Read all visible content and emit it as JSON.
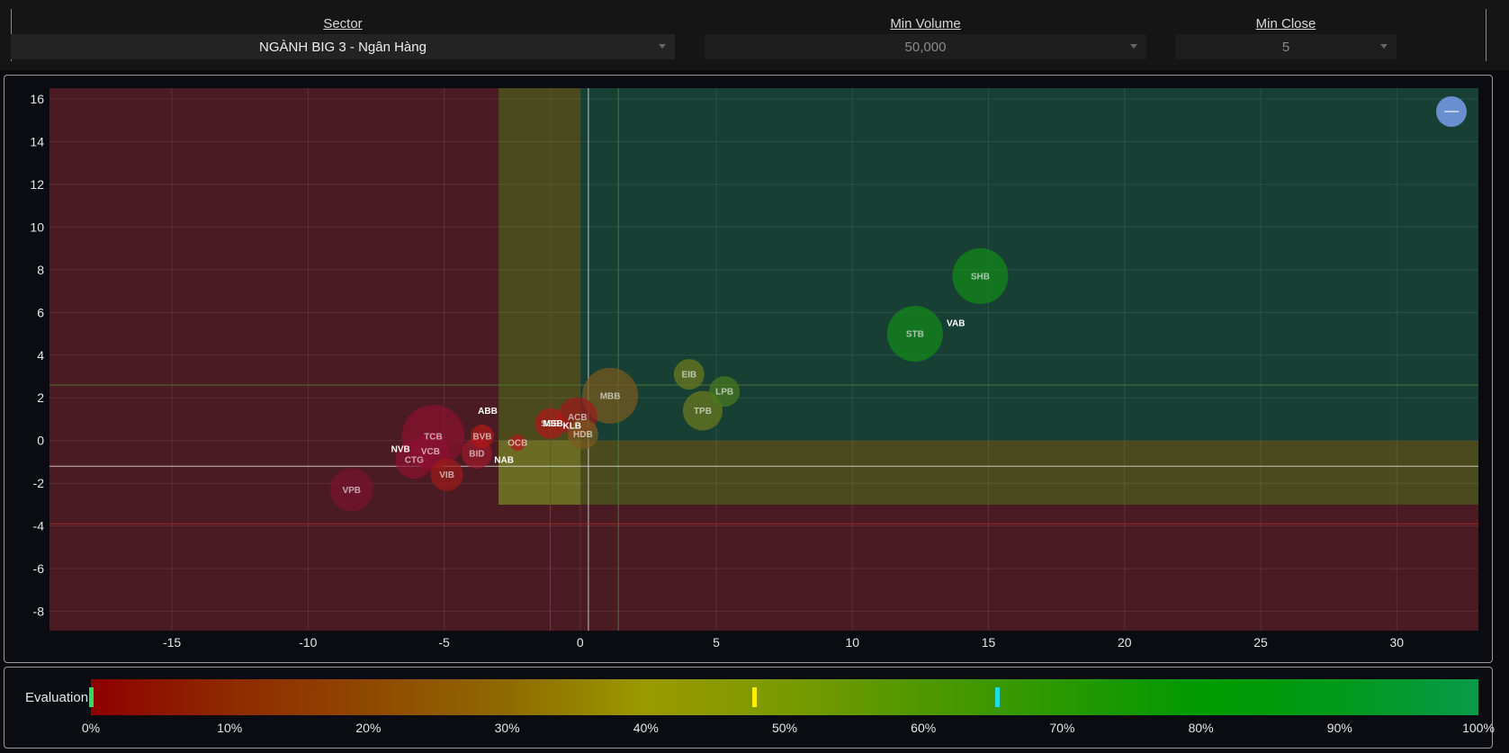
{
  "filters": {
    "sector": {
      "label": "Sector",
      "value": "NGÀNH BIG 3 - Ngân Hàng"
    },
    "min_volume": {
      "label": "Min Volume",
      "value": "50,000"
    },
    "min_close": {
      "label": "Min Close",
      "value": "5"
    }
  },
  "zoom_button": {
    "label": "—"
  },
  "chart_data": {
    "type": "scatter",
    "x_ticks": [
      "-15",
      "-10",
      "-5",
      "0",
      "5",
      "10",
      "15",
      "20",
      "25",
      "30"
    ],
    "y_ticks": [
      "16",
      "14",
      "12",
      "10",
      "8",
      "6",
      "4",
      "2",
      "0",
      "-2",
      "-4",
      "-6",
      "-8"
    ],
    "xlim": [
      -19.5,
      33
    ],
    "ylim": [
      -8.9,
      16.5
    ],
    "zones": [
      {
        "name": "red-left",
        "x": [
          -19.5,
          -3
        ],
        "y": [
          -8.9,
          16.5
        ],
        "color": "#4a1b22"
      },
      {
        "name": "red-bottom",
        "x": [
          -3,
          33
        ],
        "y": [
          -8.9,
          -3
        ],
        "color": "#4a1b22"
      },
      {
        "name": "yellow-vertical",
        "x": [
          -3,
          0
        ],
        "y": [
          -3,
          16.5
        ],
        "color": "#4a4a1c"
      },
      {
        "name": "yellow-horizontal",
        "x": [
          0,
          33
        ],
        "y": [
          -3,
          0
        ],
        "color": "#4a4a1c"
      },
      {
        "name": "yellow-corner",
        "x": [
          -3,
          0
        ],
        "y": [
          -3,
          0
        ],
        "color": "#6b6b24"
      },
      {
        "name": "green",
        "x": [
          0,
          33
        ],
        "y": [
          0,
          16.5
        ],
        "color": "#173f33"
      }
    ],
    "ref_lines": [
      {
        "axis": "x",
        "value": -1.1,
        "color": "#b22a2a"
      },
      {
        "axis": "x",
        "value": 0.3,
        "color": "#dddddd"
      },
      {
        "axis": "x",
        "value": 1.4,
        "color": "#3c8a3c"
      },
      {
        "axis": "y",
        "value": 2.6,
        "color": "#5a7a3a"
      },
      {
        "axis": "y",
        "value": -1.2,
        "color": "#dddddd"
      },
      {
        "axis": "y",
        "value": -3.9,
        "color": "#b22a2a"
      }
    ],
    "points": [
      {
        "label": "SHB",
        "x": 14.7,
        "y": 7.7,
        "size": 31,
        "color": "#138a1a"
      },
      {
        "label": "STB",
        "x": 12.3,
        "y": 5.0,
        "size": 31,
        "color": "#138a1a"
      },
      {
        "label": "VAB",
        "x": 13.8,
        "y": 5.5,
        "size": 0,
        "color": "#138a1a"
      },
      {
        "label": "EIB",
        "x": 4.0,
        "y": 3.1,
        "size": 17,
        "color": "#6b7a1e"
      },
      {
        "label": "LPB",
        "x": 5.3,
        "y": 2.3,
        "size": 17,
        "color": "#4a7a1e"
      },
      {
        "label": "TPB",
        "x": 4.5,
        "y": 1.4,
        "size": 22,
        "color": "#6b7a1e"
      },
      {
        "label": "MBB",
        "x": 1.1,
        "y": 2.1,
        "size": 31,
        "color": "#7a5a1e"
      },
      {
        "label": "ACB",
        "x": -0.1,
        "y": 1.1,
        "size": 22,
        "color": "#9b1a1a"
      },
      {
        "label": "HDB",
        "x": 0.1,
        "y": 0.3,
        "size": 17,
        "color": "#7a5a1e"
      },
      {
        "label": "SSB",
        "x": -1.1,
        "y": 0.8,
        "size": 17,
        "color": "#b01818"
      },
      {
        "label": "MSB",
        "x": -1.0,
        "y": 0.8,
        "size": 0,
        "color": "#b01818"
      },
      {
        "label": "KLB",
        "x": -0.3,
        "y": 0.7,
        "size": 0,
        "color": "#b01818"
      },
      {
        "label": "OCB",
        "x": -2.3,
        "y": -0.1,
        "size": 9,
        "color": "#b01818"
      },
      {
        "label": "ABB",
        "x": -3.4,
        "y": 1.4,
        "size": 0,
        "color": "#b01818"
      },
      {
        "label": "BVB",
        "x": -3.6,
        "y": 0.2,
        "size": 13,
        "color": "#b01818"
      },
      {
        "label": "BID",
        "x": -3.8,
        "y": -0.6,
        "size": 17,
        "color": "#9b1a2a"
      },
      {
        "label": "NAB",
        "x": -2.8,
        "y": -0.9,
        "size": 0,
        "color": "#b01818"
      },
      {
        "label": "TCB",
        "x": -5.4,
        "y": 0.2,
        "size": 35,
        "color": "#8a1030"
      },
      {
        "label": "VCB",
        "x": -5.5,
        "y": -0.5,
        "size": 21,
        "color": "#8a1030"
      },
      {
        "label": "CTG",
        "x": -6.1,
        "y": -0.9,
        "size": 21,
        "color": "#8a1030"
      },
      {
        "label": "NVB",
        "x": -6.6,
        "y": -0.4,
        "size": 0,
        "color": "#8a1030"
      },
      {
        "label": "VIB",
        "x": -4.9,
        "y": -1.6,
        "size": 18,
        "color": "#9b1a1a"
      },
      {
        "label": "VPB",
        "x": -8.4,
        "y": -2.3,
        "size": 24,
        "color": "#7a1230"
      }
    ]
  },
  "evaluation": {
    "label": "Evaluation",
    "ticks": [
      "0%",
      "10%",
      "20%",
      "30%",
      "40%",
      "50%",
      "60%",
      "70%",
      "80%",
      "90%",
      "100%"
    ],
    "markers": [
      {
        "name": "start",
        "value": 0.0,
        "color": "#33dd55"
      },
      {
        "name": "yellow",
        "value": 0.478,
        "color": "#ffee00"
      },
      {
        "name": "cyan",
        "value": 0.653,
        "color": "#22dddd"
      }
    ]
  }
}
